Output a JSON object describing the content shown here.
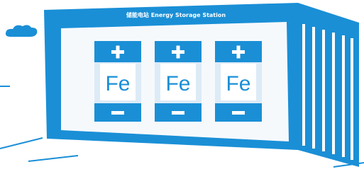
{
  "header": {
    "title": "储能电站 Energy Storage Station"
  },
  "batteries": [
    {
      "label": "Fe"
    },
    {
      "label": "Fe"
    },
    {
      "label": "Fe"
    }
  ]
}
